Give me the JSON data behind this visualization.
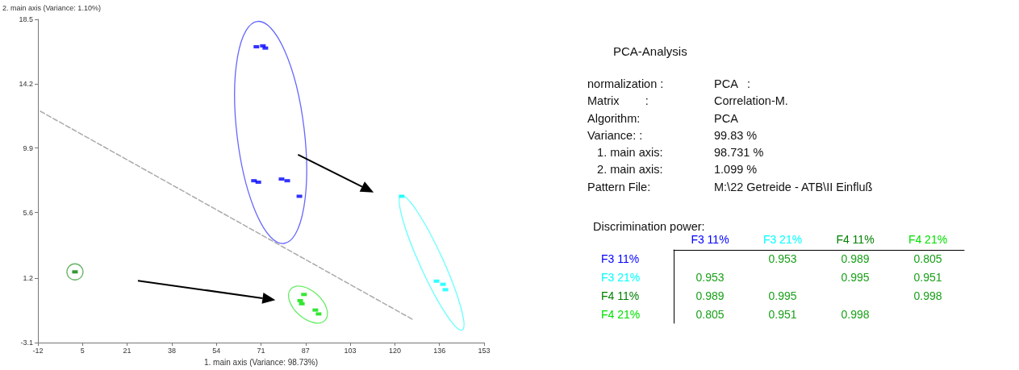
{
  "chart_data": [
    {
      "type": "scatter",
      "xlabel": "1. main axis (Variance: 98.73%)",
      "ylabel": "2. main axis (Variance: 1.10%)",
      "xlim": [
        -12,
        153
      ],
      "xticks": [
        -12,
        {
          "value": 4.5,
          "label": "5"
        },
        21,
        {
          "value": 37.5,
          "label": "38"
        },
        54,
        {
          "value": 70.5,
          "label": "71"
        },
        87,
        {
          "value": 103.5,
          "label": "103"
        },
        120,
        {
          "value": 136.5,
          "label": "136"
        },
        153
      ],
      "ylim": [
        -3.1,
        18.5
      ],
      "yticks": [
        -3.1,
        1.2,
        5.6,
        9.9,
        14.2,
        18.5
      ],
      "grid": false,
      "series": [
        {
          "color": "#0000ff",
          "marker": "square",
          "x": [
            68.8,
            71.2,
            72.1,
            67.9,
            69.5,
            78.1,
            80.2,
            84.7
          ],
          "values": [
            16.67,
            16.73,
            16.58,
            7.72,
            7.62,
            7.83,
            7.72,
            6.68
          ]
        },
        {
          "color": "#00ffff",
          "marker": "square",
          "x": [
            122.5,
            135.4,
            137.8,
            138.7
          ],
          "values": [
            6.68,
            1.01,
            0.8,
            0.44
          ]
        },
        {
          "color": "#008000",
          "marker": "square",
          "x": [
            1.7
          ],
          "values": [
            1.63
          ]
        },
        {
          "color": "#00e000",
          "marker": "square",
          "x": [
            86.4,
            85,
            85.6,
            90.6,
            91.8
          ],
          "values": [
            0.12,
            -0.29,
            -0.5,
            -0.92,
            -1.18
          ]
        },
        {
          "type": "line",
          "color": "#aaaaaa",
          "line_style": "dashed",
          "marker": "none",
          "x": [
            -11.1,
            127
          ],
          "values": [
            12.36,
            -1.59
          ]
        }
      ]
    },
    {
      "type": "other",
      "title": "PCA-Analysis",
      "annotations": [
        "normalization :",
        "PCA   :",
        "Matrix        :",
        "Correlation-M.",
        "Algorithm:",
        "PCA",
        "Variance: :",
        "99.83 %",
        "   1. main axis:",
        "98.731 %",
        "   2. main axis:",
        "1.099 %",
        "Pattern File:",
        "M:\\22 Getreide - ATB\\II Einfluß"
      ]
    },
    {
      "type": "heatmap",
      "title": "Discrimination power:",
      "categories": [
        "F3 11%",
        "F3 21%",
        "F4 11%",
        "F4 21%"
      ],
      "y_categories": [
        "F3 11%",
        "F3 21%",
        "F4 11%",
        "F4 21%"
      ],
      "cells": [
        [
          null,
          0.953,
          0.989,
          0.805
        ],
        [
          0.953,
          null,
          0.995,
          0.951
        ],
        [
          0.989,
          0.995,
          null,
          0.998
        ],
        [
          0.805,
          0.951,
          0.998,
          null
        ]
      ],
      "data_labels": true
    }
  ]
}
